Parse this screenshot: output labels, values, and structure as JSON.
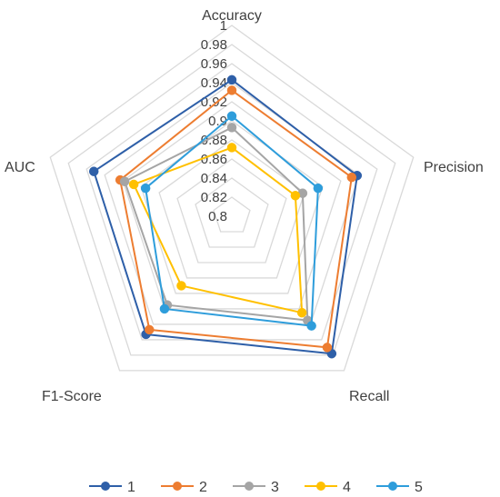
{
  "chart_data": {
    "type": "radar",
    "axes": [
      "Accuracy",
      "Precision",
      "Recall",
      "F1-Score",
      "AUC"
    ],
    "rlim": [
      0.8,
      1.0
    ],
    "ticks": [
      "0.8",
      "0.82",
      "0.84",
      "0.86",
      "0.88",
      "0.9",
      "0.92",
      "0.94",
      "0.96",
      "0.98",
      "1"
    ],
    "grid": true,
    "legend_position": "bottom",
    "series": [
      {
        "name": "1",
        "color": "#2E5FA8",
        "values": [
          0.943,
          0.938,
          0.978,
          0.953,
          0.952
        ]
      },
      {
        "name": "2",
        "color": "#ED7D31",
        "values": [
          0.932,
          0.932,
          0.97,
          0.947,
          0.923
        ]
      },
      {
        "name": "3",
        "color": "#A5A5A5",
        "values": [
          0.893,
          0.878,
          0.935,
          0.915,
          0.918
        ]
      },
      {
        "name": "4",
        "color": "#FFC000",
        "values": [
          0.872,
          0.87,
          0.925,
          0.89,
          0.908
        ]
      },
      {
        "name": "5",
        "color": "#2E9DDB",
        "values": [
          0.905,
          0.895,
          0.942,
          0.92,
          0.895
        ]
      }
    ]
  }
}
